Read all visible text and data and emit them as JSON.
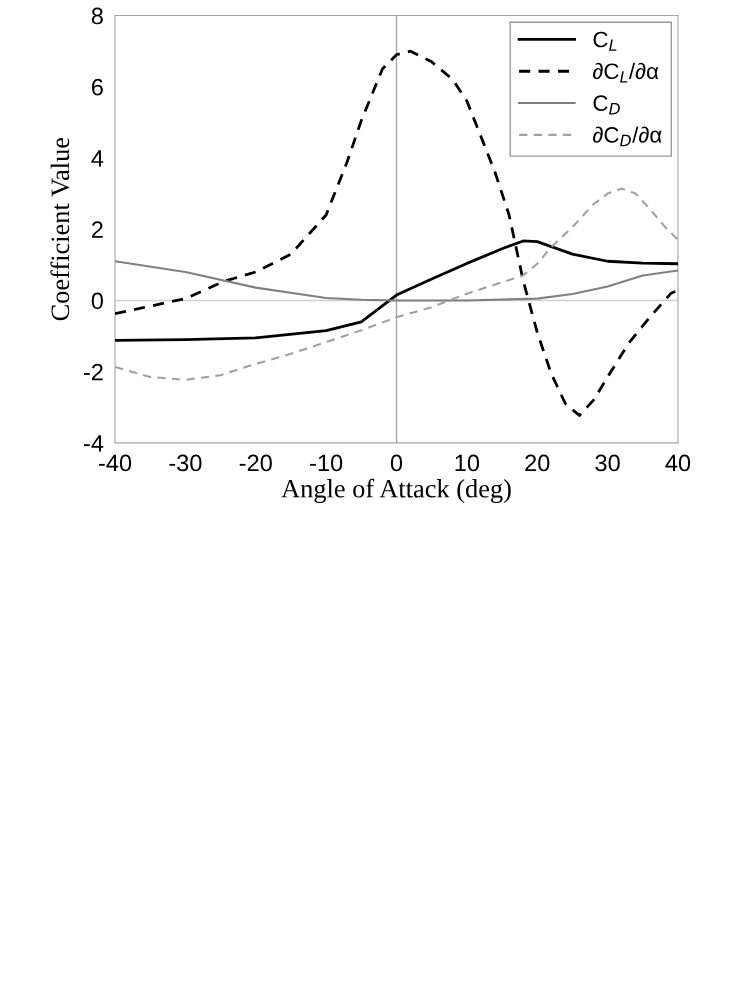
{
  "chart_data": {
    "type": "line",
    "xlabel": "Angle of Attack (deg)",
    "ylabel": "Coefficient Value",
    "xlim": [
      -40,
      40
    ],
    "xticks": [
      -40,
      -30,
      -20,
      -10,
      0,
      10,
      20,
      30,
      40
    ],
    "ylim": [
      -4,
      8
    ],
    "yticks": [
      -4,
      -2,
      0,
      2,
      4,
      6,
      8
    ],
    "grid": false,
    "legend": "top right",
    "marker": "none",
    "ref_lines": [
      {
        "axis": "x",
        "value": 0,
        "color": "#a6a6a6",
        "line_style": "solid"
      },
      {
        "axis": "y",
        "value": 0,
        "color": "#d0d0d0",
        "line_style": "solid"
      }
    ],
    "series": [
      {
        "name": "C$_{L}$",
        "color": "#000000",
        "line_style": "solid",
        "x": [
          -40,
          -30,
          -20,
          -10,
          -5,
          0,
          5,
          10,
          15,
          18,
          20,
          25,
          30,
          35,
          40
        ],
        "values": [
          -1.12,
          -1.1,
          -1.05,
          -0.85,
          -0.6,
          0.15,
          0.6,
          1.04,
          1.45,
          1.67,
          1.65,
          1.3,
          1.1,
          1.05,
          1.03
        ]
      },
      {
        "name": "∂C$_{L}$/∂α",
        "color": "#000000",
        "line_style": "dashed",
        "x": [
          -40,
          -30,
          -24.6,
          -20,
          -15,
          -10,
          -7,
          -5,
          -2,
          0,
          2,
          5,
          8,
          10,
          12,
          14,
          16,
          18,
          20,
          22,
          24,
          26,
          28,
          30,
          33,
          36,
          39,
          40
        ],
        "values": [
          -0.37,
          0.05,
          0.53,
          0.8,
          1.3,
          2.4,
          3.9,
          5.05,
          6.5,
          6.9,
          7.0,
          6.7,
          6.2,
          5.6,
          4.6,
          3.6,
          2.4,
          0.56,
          -0.9,
          -2.06,
          -2.9,
          -3.23,
          -2.8,
          -2.15,
          -1.2,
          -0.47,
          0.2,
          0.28
        ]
      },
      {
        "name": "C$_{D}$",
        "color": "#808080",
        "line_style": "solid",
        "x": [
          -40,
          -30,
          -20,
          -10,
          -5,
          0,
          10,
          20,
          25,
          30,
          35,
          40
        ],
        "values": [
          1.1,
          0.8,
          0.36,
          0.07,
          0.02,
          0.0,
          0.0,
          0.05,
          0.18,
          0.39,
          0.7,
          0.84
        ]
      },
      {
        "name": "∂C$_{D}$/∂α",
        "color": "#a0a0a0",
        "line_style": "dashed",
        "x": [
          -40,
          -35,
          -30,
          -25,
          -20,
          -15,
          -10,
          -5,
          0,
          5,
          10,
          15,
          18,
          20,
          22,
          25,
          28,
          30,
          32,
          34,
          36,
          38,
          40
        ],
        "values": [
          -1.87,
          -2.15,
          -2.23,
          -2.1,
          -1.78,
          -1.5,
          -1.17,
          -0.84,
          -0.47,
          -0.19,
          0.19,
          0.51,
          0.7,
          1.03,
          1.5,
          2.06,
          2.7,
          3.0,
          3.14,
          3.0,
          2.57,
          2.1,
          1.7
        ]
      }
    ]
  }
}
